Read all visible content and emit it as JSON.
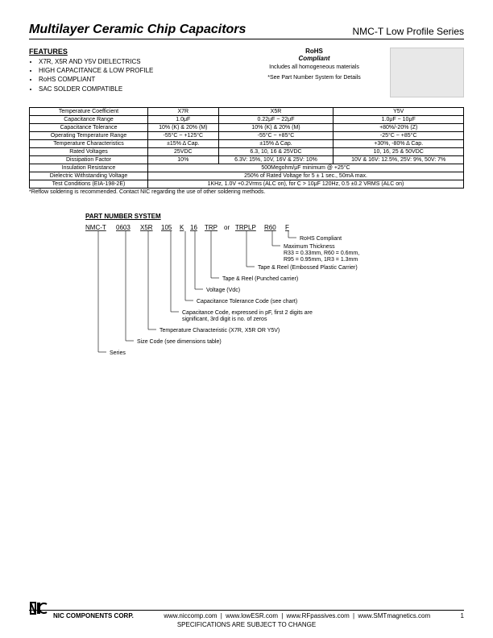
{
  "header": {
    "title": "Multilayer Ceramic Chip Capacitors",
    "series": "NMC-T Low Profile Series"
  },
  "features": {
    "heading": "FEATURES",
    "items": [
      "X7R, X5R AND Y5V DIELECTRICS",
      "HIGH CAPACITANCE & LOW PROFILE",
      "RoHS COMPLIANT",
      "SAC SOLDER COMPATIBLE"
    ]
  },
  "rohs": {
    "line1": "RoHS",
    "line2": "Compliant",
    "sub": "Includes all homogeneous materials",
    "note": "*See Part Number System for Details"
  },
  "spec_table": {
    "cols": [
      "",
      "X7R",
      "X5R",
      "Y5V"
    ],
    "rows": [
      [
        "Temperature Coefficient",
        "X7R",
        "X5R",
        "Y5V"
      ],
      [
        "Capacitance Range",
        "1.0μF",
        "0.22μF ~ 22μF",
        "1.0μF ~ 10μF"
      ],
      [
        "Capacitance Tolerance",
        "10% (K) & 20% (M)",
        "10% (K) & 20% (M)",
        "+80%/-20% (Z)"
      ],
      [
        "Operating Temperature Range",
        "-55°C ~ +125°C",
        "-55°C ~ +85°C",
        "-25°C ~ +85°C"
      ],
      [
        "Temperature Characteristics",
        "±15% Δ Cap.",
        "±15% Δ Cap.",
        "+30%, -80% Δ Cap."
      ],
      [
        "Rated Voltages",
        "25VDC",
        "6.3, 10, 16 & 25VDC",
        "10, 16, 25 & 50VDC"
      ],
      [
        "Dissipation Factor",
        "10%",
        "6.3V: 15%, 10V, 16V & 25V: 10%",
        "10V & 16V: 12.5%, 25V: 9%, 50V: 7%"
      ],
      [
        "Insulation Resistance",
        "500Megohm/μF minimum @ +25°C"
      ],
      [
        "Dielectric Withstanding Voltage",
        "250% of Rated Voltage for 5 ± 1 sec., 50mA max."
      ],
      [
        "Test Conditions (EIA-198-2E)",
        "1KHz, 1.0V +0.2Vrms (ALC on), for C > 10μF 120Hz, 0.5 ±0.2 VRMS (ALC on)"
      ]
    ]
  },
  "reflow": "*Reflow soldering is recommended. Contact NIC regarding the use of other soldering methods.",
  "pns": {
    "heading": "PART NUMBER SYSTEM",
    "parts": [
      "NMC-T",
      "0603",
      "X5R",
      "105",
      "K",
      "16",
      "TRP",
      "or",
      "TRPLP",
      "R60",
      "F"
    ],
    "lines": [
      {
        "label": "RoHS Compliant"
      },
      {
        "label": "Maximum Thickness\nR33 = 0.33mm, R60 = 0.6mm,\nR95 = 0.95mm, 1R3 = 1.3mm"
      },
      {
        "label": "Tape & Reel (Embossed Plastic Carrier)"
      },
      {
        "label": "Tape & Reel (Punched carrier)"
      },
      {
        "label": "Voltage (Vdc)"
      },
      {
        "label": "Capacitance Tolerance Code (see chart)"
      },
      {
        "label": "Capacitance Code, expressed in pF, first 2 digits are\nsignificant, 3rd digit is no. of zeros"
      },
      {
        "label": "Temperature Characteristic (X7R, X5R OR Y5V)"
      },
      {
        "label": "Size Code (see dimensions table)"
      },
      {
        "label": "Series"
      }
    ]
  },
  "footer": {
    "corp": "NIC COMPONENTS CORP.",
    "links": [
      "www.niccomp.com",
      "www.lowESR.com",
      "www.RFpassives.com",
      "www.SMTmagnetics.com"
    ],
    "page": "1",
    "change": "SPECIFICATIONS ARE SUBJECT TO CHANGE"
  }
}
